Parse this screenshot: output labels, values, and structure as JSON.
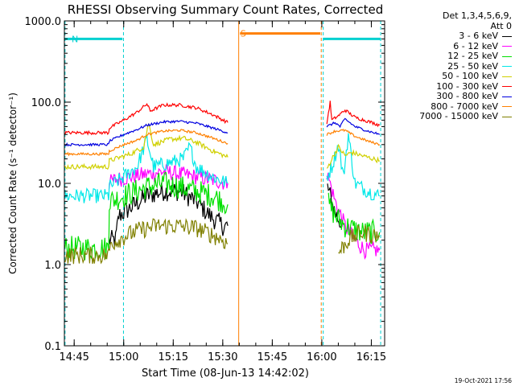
{
  "title": "RHESSI Observing Summary Count Rates, Corrected",
  "legend": {
    "header1": "Det 1,3,4,5,6,9,",
    "header2": "Att 0"
  },
  "timestamp": "19-Oct-2021 17:56",
  "annotations": [
    {
      "text": "N",
      "t": 2.2,
      "y": 600,
      "color": "#00d0d0"
    },
    {
      "text": "S",
      "t": 53.3,
      "y": 700,
      "color": "#ff7f00"
    }
  ],
  "chart_data": {
    "type": "line",
    "title": "RHESSI Observing Summary Count Rates, Corrected",
    "xlabel": "Start Time (08-Jun-13 14:42:02)",
    "ylabel": "Corrected Count Rate (s⁻¹ detector⁻¹)",
    "x_unit": "minutes after 14:42:02",
    "xlim": [
      0,
      97
    ],
    "ylim": [
      0.1,
      1000
    ],
    "y_scale": "log",
    "grid": false,
    "legend_position": "right",
    "x_ticks": [
      {
        "t": 2.97,
        "label": "14:45"
      },
      {
        "t": 17.97,
        "label": "15:00"
      },
      {
        "t": 32.97,
        "label": "15:15"
      },
      {
        "t": 47.97,
        "label": "15:30"
      },
      {
        "t": 62.97,
        "label": "15:45"
      },
      {
        "t": 77.97,
        "label": "16:00"
      },
      {
        "t": 92.97,
        "label": "16:15"
      }
    ],
    "y_ticks": [
      {
        "v": 0.1,
        "label": "0.1"
      },
      {
        "v": 1,
        "label": "1.0"
      },
      {
        "v": 10,
        "label": "10.0"
      },
      {
        "v": 100,
        "label": "100.0"
      },
      {
        "v": 1000,
        "label": "1000.0"
      }
    ],
    "vertical_markers": [
      {
        "t": 0.2,
        "color": "#00d0d0",
        "style": "dashed"
      },
      {
        "t": 17.9,
        "color": "#00d0d0",
        "style": "dashed"
      },
      {
        "t": 78.4,
        "color": "#00d0d0",
        "style": "dashed"
      },
      {
        "t": 95.8,
        "color": "#00d0d0",
        "style": "dashed"
      },
      {
        "t": 52.8,
        "color": "#ff7f00",
        "style": "solid"
      },
      {
        "t": 77.8,
        "color": "#ff7f00",
        "style": "dashed"
      }
    ],
    "flags": [
      {
        "name": "N",
        "color": "#00d0d0",
        "y": 600,
        "segments": [
          [
            0.2,
            17.6
          ],
          [
            78.4,
            95.8
          ]
        ]
      },
      {
        "name": "S",
        "color": "#ff7f00",
        "y": 700,
        "segments": [
          [
            53.2,
            77.5
          ]
        ]
      }
    ],
    "series": [
      {
        "name": "3 - 6 keV",
        "color": "#000000",
        "noise": 0.25,
        "segments": [
          [
            [
              13.5,
              2
            ],
            [
              15.5,
              2
            ],
            [
              16.5,
              4
            ],
            [
              20,
              5
            ],
            [
              25,
              7
            ],
            [
              30,
              8
            ],
            [
              35,
              8
            ],
            [
              40,
              6
            ],
            [
              44,
              4
            ],
            [
              48,
              3
            ],
            [
              49.5,
              3
            ]
          ],
          [
            [
              79.7,
              9
            ],
            [
              80.5,
              7
            ],
            [
              81.5,
              5
            ],
            [
              82.5,
              4
            ],
            [
              84,
              3
            ]
          ]
        ]
      },
      {
        "name": "6 - 12 keV",
        "color": "#ff00ff",
        "noise": 0.2,
        "segments": [
          [
            [
              13.5,
              10
            ],
            [
              15,
              11
            ],
            [
              20,
              12
            ],
            [
              25,
              13
            ],
            [
              30,
              14
            ],
            [
              35,
              13
            ],
            [
              40,
              12
            ],
            [
              45,
              11
            ],
            [
              49.5,
              10
            ]
          ],
          [
            [
              79.3,
              14
            ],
            [
              80.5,
              10
            ],
            [
              82,
              6
            ],
            [
              85,
              3
            ],
            [
              88,
              2
            ],
            [
              91,
              1.5
            ],
            [
              95.5,
              1.5
            ]
          ]
        ]
      },
      {
        "name": "12 - 25 keV",
        "color": "#00e000",
        "noise": 0.3,
        "segments": [
          [
            [
              0.2,
              1.6
            ],
            [
              13.4,
              1.6
            ],
            [
              13.6,
              6
            ],
            [
              18,
              7
            ],
            [
              25,
              9
            ],
            [
              30,
              10
            ],
            [
              35,
              9
            ],
            [
              40,
              8
            ],
            [
              45,
              7
            ],
            [
              49.5,
              5.5
            ]
          ],
          [
            [
              80,
              5.5
            ],
            [
              82,
              4
            ],
            [
              85,
              3
            ],
            [
              90,
              2.5
            ],
            [
              95.5,
              2.5
            ]
          ]
        ]
      },
      {
        "name": "25 - 50 keV",
        "color": "#00e8e8",
        "noise": 0.18,
        "segments": [
          [
            [
              0.2,
              7
            ],
            [
              13.4,
              7
            ],
            [
              13.6,
              9
            ],
            [
              18,
              12
            ],
            [
              22,
              16
            ],
            [
              25,
              35
            ],
            [
              27,
              16
            ],
            [
              32,
              18
            ],
            [
              36,
              20
            ],
            [
              38,
              28
            ],
            [
              40,
              16
            ],
            [
              45,
              12
            ],
            [
              49.5,
              10
            ]
          ],
          [
            [
              79.5,
              12
            ],
            [
              81,
              16
            ],
            [
              83,
              30
            ],
            [
              84.5,
              12
            ],
            [
              86,
              40
            ],
            [
              88,
              10
            ],
            [
              92,
              8
            ],
            [
              95.5,
              7
            ]
          ]
        ]
      },
      {
        "name": "50 - 100 keV",
        "color": "#d0d000",
        "noise": 0.06,
        "segments": [
          [
            [
              0.2,
              16
            ],
            [
              13.4,
              16
            ],
            [
              13.6,
              19
            ],
            [
              20,
              23
            ],
            [
              24,
              28
            ],
            [
              25.5,
              55
            ],
            [
              27,
              30
            ],
            [
              32,
              35
            ],
            [
              36,
              36
            ],
            [
              40,
              32
            ],
            [
              45,
              25
            ],
            [
              49.5,
              21
            ]
          ],
          [
            [
              79.5,
              15
            ],
            [
              81,
              20
            ],
            [
              83,
              28
            ],
            [
              85,
              22
            ],
            [
              87,
              24
            ],
            [
              90,
              22
            ],
            [
              95.5,
              19
            ]
          ]
        ]
      },
      {
        "name": "100 - 300 keV",
        "color": "#ff0000",
        "noise": 0.04,
        "segments": [
          [
            [
              0.2,
              42
            ],
            [
              13.4,
              42
            ],
            [
              13.6,
              48
            ],
            [
              18,
              60
            ],
            [
              22,
              75
            ],
            [
              25,
              95
            ],
            [
              26,
              78
            ],
            [
              30,
              92
            ],
            [
              35,
              92
            ],
            [
              40,
              85
            ],
            [
              45,
              70
            ],
            [
              49.5,
              56
            ]
          ],
          [
            [
              79.5,
              55
            ],
            [
              80.5,
              100
            ],
            [
              81,
              60
            ],
            [
              83,
              68
            ],
            [
              85,
              80
            ],
            [
              88,
              65
            ],
            [
              92,
              58
            ],
            [
              95.5,
              52
            ]
          ]
        ]
      },
      {
        "name": "300 - 800 keV",
        "color": "#0000e0",
        "noise": 0.03,
        "segments": [
          [
            [
              0.2,
              30
            ],
            [
              13.4,
              30
            ],
            [
              13.6,
              33
            ],
            [
              18,
              40
            ],
            [
              22,
              46
            ],
            [
              25,
              52
            ],
            [
              30,
              57
            ],
            [
              35,
              58
            ],
            [
              40,
              55
            ],
            [
              45,
              48
            ],
            [
              49.5,
              42
            ]
          ],
          [
            [
              79.5,
              50
            ],
            [
              82,
              56
            ],
            [
              83.5,
              50
            ],
            [
              85,
              62
            ],
            [
              88,
              50
            ],
            [
              92,
              44
            ],
            [
              95.5,
              40
            ]
          ]
        ]
      },
      {
        "name": "800 - 7000 keV",
        "color": "#ff8000",
        "noise": 0.03,
        "segments": [
          [
            [
              0.2,
              23
            ],
            [
              13.4,
              23
            ],
            [
              13.6,
              25
            ],
            [
              18,
              30
            ],
            [
              22,
              34
            ],
            [
              25,
              40
            ],
            [
              30,
              44
            ],
            [
              35,
              45
            ],
            [
              40,
              42
            ],
            [
              45,
              36
            ],
            [
              49.5,
              31
            ]
          ],
          [
            [
              79.5,
              40
            ],
            [
              82,
              44
            ],
            [
              85,
              45
            ],
            [
              88,
              38
            ],
            [
              92,
              33
            ],
            [
              95.5,
              30
            ]
          ]
        ]
      },
      {
        "name": "7000 - 15000 keV",
        "color": "#808000",
        "noise": 0.22,
        "segments": [
          [
            [
              0.2,
              1.3
            ],
            [
              13.4,
              1.3
            ],
            [
              14,
              1.8
            ],
            [
              18,
              2.2
            ],
            [
              22,
              2.6
            ],
            [
              28,
              3
            ],
            [
              34,
              3
            ],
            [
              40,
              2.8
            ],
            [
              44,
              2.4
            ],
            [
              48,
              2
            ],
            [
              49.5,
              1.8
            ]
          ],
          [
            [
              83,
              1.4
            ],
            [
              86,
              2
            ],
            [
              90,
              2.5
            ],
            [
              95.5,
              2.2
            ]
          ]
        ]
      }
    ]
  }
}
